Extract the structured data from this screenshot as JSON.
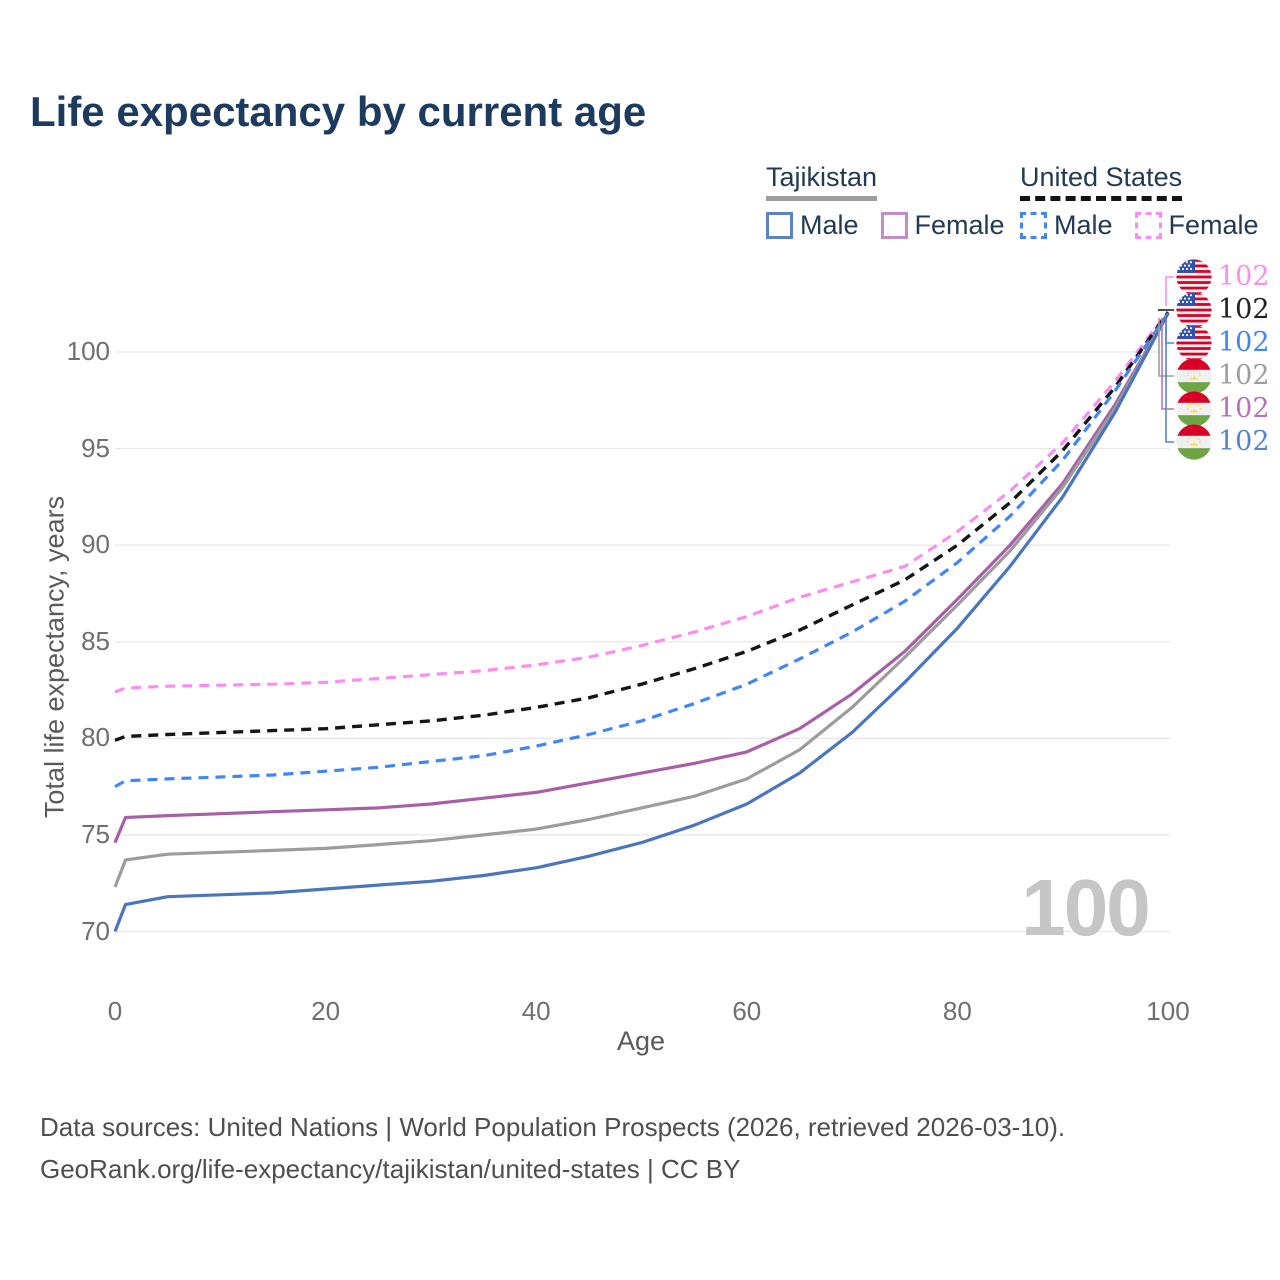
{
  "title": "Life expectancy by current age",
  "legend": {
    "groups": [
      {
        "name": "Tajikistan",
        "underline_style": "solid",
        "underline_color": "#9e9e9e",
        "items": [
          {
            "label": "Male",
            "color": "#5b84c4",
            "dash": false
          },
          {
            "label": "Female",
            "color": "#c48bc8",
            "dash": false
          }
        ]
      },
      {
        "name": "United States",
        "underline_style": "dashed",
        "underline_color": "#141414",
        "items": [
          {
            "label": "Male",
            "color": "#4187f4",
            "dash": true
          },
          {
            "label": "Female",
            "color": "#fb8cf0",
            "dash": true
          }
        ]
      }
    ]
  },
  "chart_data": {
    "type": "line",
    "title": "Life expectancy by current age",
    "x_label": "Age",
    "y_label": "Total life expectancy, years",
    "xlim": [
      0,
      100
    ],
    "ylim": [
      70,
      103
    ],
    "x_ticks": [
      0,
      20,
      40,
      60,
      80,
      100
    ],
    "y_ticks": [
      70,
      75,
      80,
      85,
      90,
      95,
      100
    ],
    "grid": "horizontal",
    "legend_position": "top-right",
    "watermark_current_age": "100",
    "ages": [
      0,
      1,
      5,
      10,
      15,
      20,
      25,
      30,
      35,
      40,
      45,
      50,
      55,
      60,
      65,
      70,
      75,
      80,
      85,
      90,
      95,
      100
    ],
    "series": [
      {
        "name": "United States Female",
        "color": "#fb8cf0",
        "dash": true,
        "width": 3.2,
        "values": [
          82.4,
          82.6,
          82.7,
          82.75,
          82.8,
          82.9,
          83.1,
          83.3,
          83.5,
          83.8,
          84.2,
          84.8,
          85.5,
          86.3,
          87.3,
          88.1,
          88.9,
          90.7,
          92.8,
          95.3,
          98.5,
          102.1
        ]
      },
      {
        "name": "United States",
        "color": "#161616",
        "dash": true,
        "width": 3.4,
        "values": [
          79.9,
          80.1,
          80.2,
          80.3,
          80.4,
          80.5,
          80.7,
          80.9,
          81.2,
          81.6,
          82.1,
          82.8,
          83.6,
          84.5,
          85.6,
          86.9,
          88.2,
          90.0,
          92.2,
          94.9,
          98.2,
          102.05
        ]
      },
      {
        "name": "United States Male",
        "color": "#4187f4",
        "dash": true,
        "width": 3.2,
        "values": [
          77.5,
          77.8,
          77.9,
          78.0,
          78.1,
          78.3,
          78.5,
          78.8,
          79.1,
          79.6,
          80.2,
          80.9,
          81.8,
          82.8,
          84.1,
          85.5,
          87.1,
          89.1,
          91.5,
          94.4,
          98.0,
          102.0
        ]
      },
      {
        "name": "Tajikistan Female",
        "color": "#a85fa8",
        "dash": false,
        "width": 3.2,
        "values": [
          74.6,
          75.9,
          76.0,
          76.1,
          76.2,
          76.3,
          76.4,
          76.6,
          76.9,
          77.2,
          77.7,
          78.2,
          78.7,
          79.3,
          80.5,
          82.3,
          84.5,
          87.2,
          90.0,
          93.2,
          97.3,
          102.0
        ]
      },
      {
        "name": "Tajikistan",
        "color": "#9c9c9c",
        "dash": false,
        "width": 3.2,
        "values": [
          72.3,
          73.7,
          74.0,
          74.1,
          74.2,
          74.3,
          74.5,
          74.7,
          75.0,
          75.3,
          75.8,
          76.4,
          77.0,
          77.9,
          79.4,
          81.6,
          84.2,
          86.9,
          89.7,
          93.0,
          97.1,
          102.0
        ]
      },
      {
        "name": "Tajikistan Male",
        "color": "#4a76bb",
        "dash": false,
        "width": 3.2,
        "values": [
          70.0,
          71.4,
          71.8,
          71.9,
          72.0,
          72.2,
          72.4,
          72.6,
          72.9,
          73.3,
          73.9,
          74.6,
          75.5,
          76.6,
          78.2,
          80.3,
          82.9,
          85.7,
          88.9,
          92.5,
          96.9,
          102.0
        ]
      }
    ],
    "end_labels": [
      {
        "flag": "us",
        "value": "102",
        "color": "#fb8cf0",
        "series": "United States Female"
      },
      {
        "flag": "us",
        "value": "102",
        "color": "#222222",
        "series": "United States"
      },
      {
        "flag": "us",
        "value": "102",
        "color": "#4187f4",
        "series": "United States Male"
      },
      {
        "flag": "tj",
        "value": "102",
        "color": "#9e9e9e",
        "series": "Tajikistan"
      },
      {
        "flag": "tj",
        "value": "102",
        "color": "#b473bb",
        "series": "Tajikistan Female"
      },
      {
        "flag": "tj",
        "value": "102",
        "color": "#5585c8",
        "series": "Tajikistan Male"
      }
    ]
  },
  "watermark": "100",
  "flag_colors": {
    "red": "#d80027",
    "white": "#f0f0f0",
    "canton_blue": "#2e52b2",
    "green": "#6da544",
    "yellow": "#ffda44"
  },
  "footer": {
    "line1": "Data sources: United Nations | World Population Prospects (2026, retrieved 2026-03-10).",
    "line2": "GeoRank.org/life-expectancy/tajikistan/united-states | CC BY"
  }
}
